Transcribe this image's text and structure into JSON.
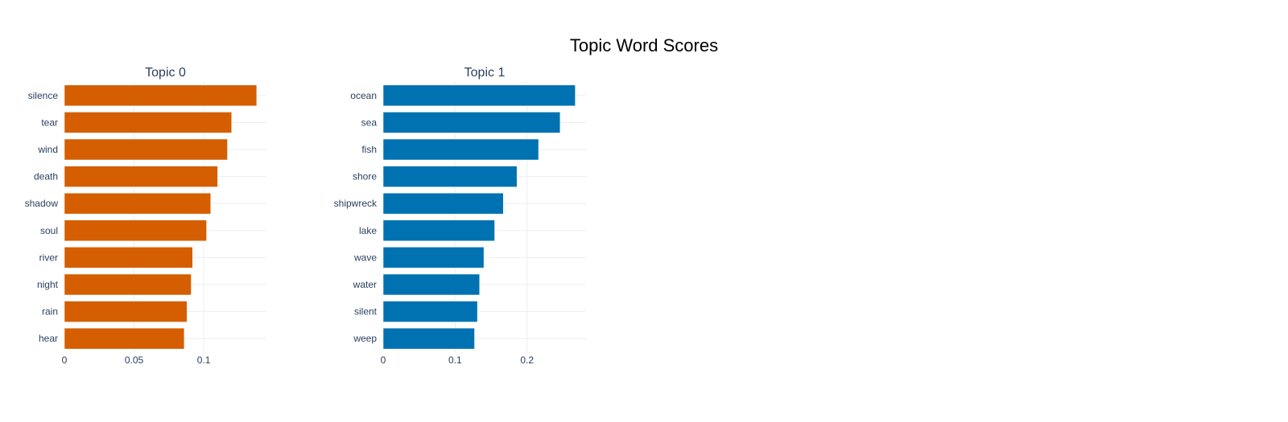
{
  "title": "Topic Word Scores",
  "chart_data": [
    {
      "type": "bar",
      "orientation": "horizontal",
      "title": "Topic 0",
      "color": "#D55E00",
      "categories": [
        "silence",
        "tear",
        "wind",
        "death",
        "shadow",
        "soul",
        "river",
        "night",
        "rain",
        "hear"
      ],
      "values": [
        0.138,
        0.12,
        0.117,
        0.11,
        0.105,
        0.102,
        0.092,
        0.091,
        0.088,
        0.086
      ],
      "xticks": [
        0,
        0.05,
        0.1
      ],
      "xtick_labels": [
        "0",
        "0.05",
        "0.1"
      ],
      "xlim": [
        0,
        0.145
      ],
      "grid": true
    },
    {
      "type": "bar",
      "orientation": "horizontal",
      "title": "Topic 1",
      "color": "#0072B2",
      "categories": [
        "ocean",
        "sea",
        "fish",
        "shore",
        "shipwreck",
        "lake",
        "wave",
        "water",
        "silent",
        "weep"
      ],
      "values": [
        0.267,
        0.246,
        0.216,
        0.186,
        0.167,
        0.155,
        0.14,
        0.134,
        0.131,
        0.127
      ],
      "xticks": [
        0,
        0.1,
        0.2
      ],
      "xtick_labels": [
        "0",
        "0.1",
        "0.2"
      ],
      "xlim": [
        0,
        0.282
      ],
      "grid": true
    }
  ]
}
